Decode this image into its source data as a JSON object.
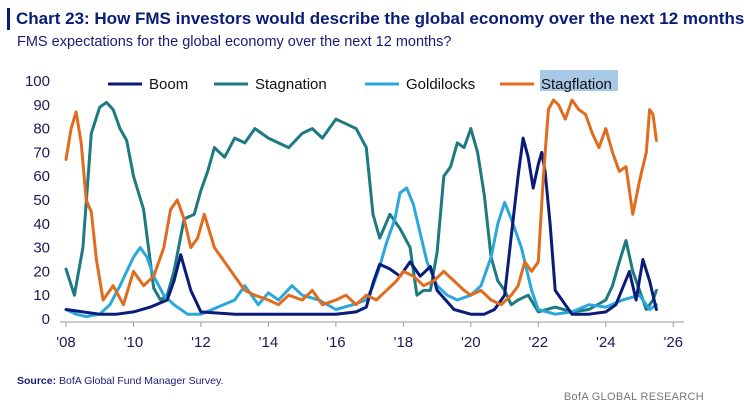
{
  "header": {
    "title": "Chart 23: How FMS investors would describe the global economy over the next 12 months",
    "subtitle": "FMS expectations for the global economy over the next 12 months?"
  },
  "footer": {
    "source_label": "Source:",
    "source_text": "BofA Global Fund Manager Survey.",
    "brand": "BofA GLOBAL RESEARCH"
  },
  "colors": {
    "Boom": "#0a1c7a",
    "Stagnation": "#1c7a80",
    "Goldilocks": "#2aa8dd",
    "Stagflation": "#e06c1e",
    "highlight": "#a8c8e8"
  },
  "chart_data": {
    "type": "line",
    "title": "How FMS investors would describe the global economy over the next 12 months",
    "xlabel": "",
    "ylabel": "",
    "xlim": [
      2008.0,
      2026.2
    ],
    "ylim": [
      0,
      100
    ],
    "y_ticks": [
      0,
      10,
      20,
      30,
      40,
      50,
      60,
      70,
      80,
      90,
      100
    ],
    "x_ticks": [
      2008,
      2010,
      2012,
      2014,
      2016,
      2018,
      2020,
      2022,
      2024,
      2026
    ],
    "x_tick_labels": [
      "'08",
      "'10",
      "'12",
      "'14",
      "'16",
      "'18",
      "'20",
      "'22",
      "'24",
      "'26"
    ],
    "legend_position": "top",
    "highlighted_legend": "Stagflation",
    "series": [
      {
        "name": "Boom",
        "x": [
          2008.0,
          2008.5,
          2009.0,
          2009.5,
          2010.0,
          2010.5,
          2011.0,
          2011.2,
          2011.4,
          2011.7,
          2012.0,
          2013.0,
          2014.0,
          2015.0,
          2016.0,
          2016.6,
          2016.9,
          2017.1,
          2017.3,
          2017.6,
          2017.9,
          2018.2,
          2018.5,
          2018.8,
          2019.0,
          2019.5,
          2020.0,
          2020.4,
          2020.7,
          2021.0,
          2021.2,
          2021.4,
          2021.55,
          2021.7,
          2021.85,
          2022.0,
          2022.1,
          2022.2,
          2022.35,
          2022.5,
          2023.0,
          2023.5,
          2024.0,
          2024.3,
          2024.5,
          2024.7,
          2024.9,
          2025.1,
          2025.3,
          2025.5
        ],
        "values": [
          4,
          3,
          2,
          2,
          3,
          5,
          8,
          16,
          27,
          12,
          3,
          2,
          2,
          2,
          2,
          3,
          5,
          15,
          23,
          21,
          18,
          24,
          18,
          22,
          12,
          4,
          2,
          2,
          4,
          10,
          35,
          60,
          76,
          68,
          55,
          65,
          70,
          62,
          40,
          12,
          2,
          2,
          3,
          6,
          13,
          20,
          8,
          25,
          16,
          4
        ]
      },
      {
        "name": "Stagnation",
        "x": [
          2008.0,
          2008.25,
          2008.5,
          2008.75,
          2009.0,
          2009.2,
          2009.4,
          2009.6,
          2009.8,
          2010.0,
          2010.3,
          2010.6,
          2010.8,
          2011.0,
          2011.2,
          2011.5,
          2011.8,
          2012.0,
          2012.2,
          2012.4,
          2012.7,
          2013.0,
          2013.3,
          2013.6,
          2014.0,
          2014.3,
          2014.6,
          2015.0,
          2015.3,
          2015.6,
          2016.0,
          2016.3,
          2016.6,
          2016.9,
          2017.1,
          2017.3,
          2017.6,
          2017.9,
          2018.2,
          2018.4,
          2018.6,
          2018.8,
          2019.0,
          2019.2,
          2019.4,
          2019.6,
          2019.8,
          2020.0,
          2020.2,
          2020.4,
          2020.6,
          2020.8,
          2021.0,
          2021.2,
          2021.4,
          2021.7,
          2022.0,
          2022.5,
          2023.0,
          2023.5,
          2024.0,
          2024.2,
          2024.4,
          2024.6,
          2024.8,
          2025.0,
          2025.2,
          2025.4,
          2025.5
        ],
        "values": [
          21,
          10,
          30,
          78,
          89,
          91,
          88,
          80,
          75,
          60,
          46,
          13,
          8,
          10,
          20,
          42,
          44,
          54,
          62,
          72,
          68,
          76,
          74,
          80,
          76,
          74,
          72,
          78,
          80,
          76,
          84,
          82,
          80,
          72,
          44,
          34,
          44,
          38,
          30,
          10,
          12,
          12,
          28,
          60,
          64,
          74,
          72,
          80,
          70,
          52,
          26,
          16,
          12,
          6,
          8,
          10,
          3,
          5,
          3,
          4,
          8,
          14,
          24,
          33,
          20,
          12,
          4,
          8,
          12
        ]
      },
      {
        "name": "Goldilocks",
        "x": [
          2008.0,
          2008.3,
          2008.6,
          2009.0,
          2009.3,
          2009.6,
          2010.0,
          2010.2,
          2010.4,
          2010.6,
          2010.9,
          2011.2,
          2011.6,
          2012.0,
          2012.5,
          2013.0,
          2013.3,
          2013.7,
          2014.0,
          2014.3,
          2014.7,
          2015.0,
          2015.5,
          2016.0,
          2016.5,
          2016.9,
          2017.1,
          2017.3,
          2017.5,
          2017.75,
          2017.9,
          2018.1,
          2018.3,
          2018.5,
          2018.7,
          2019.0,
          2019.3,
          2019.6,
          2020.0,
          2020.3,
          2020.6,
          2020.8,
          2021.0,
          2021.2,
          2021.5,
          2021.8,
          2022.0,
          2022.5,
          2023.0,
          2023.5,
          2024.0,
          2024.5,
          2025.0,
          2025.3,
          2025.5
        ],
        "values": [
          4,
          2,
          1,
          2,
          6,
          14,
          26,
          30,
          26,
          18,
          10,
          6,
          2,
          2,
          5,
          8,
          14,
          6,
          11,
          8,
          14,
          10,
          8,
          4,
          6,
          8,
          14,
          22,
          32,
          42,
          53,
          55,
          48,
          36,
          24,
          14,
          10,
          8,
          10,
          14,
          26,
          40,
          49,
          42,
          30,
          12,
          4,
          2,
          3,
          6,
          5,
          8,
          10,
          4,
          6
        ]
      },
      {
        "name": "Stagflation",
        "x": [
          2008.0,
          2008.15,
          2008.3,
          2008.45,
          2008.6,
          2008.75,
          2008.9,
          2009.1,
          2009.4,
          2009.7,
          2010.0,
          2010.3,
          2010.6,
          2010.9,
          2011.1,
          2011.3,
          2011.5,
          2011.7,
          2011.9,
          2012.1,
          2012.4,
          2012.7,
          2013.0,
          2013.3,
          2013.6,
          2014.0,
          2014.3,
          2014.6,
          2015.0,
          2015.3,
          2015.6,
          2016.0,
          2016.3,
          2016.6,
          2016.9,
          2017.2,
          2017.5,
          2017.8,
          2018.0,
          2018.3,
          2018.6,
          2018.9,
          2019.2,
          2019.5,
          2019.8,
          2020.0,
          2020.3,
          2020.6,
          2020.9,
          2021.2,
          2021.4,
          2021.6,
          2021.8,
          2022.0,
          2022.15,
          2022.3,
          2022.45,
          2022.6,
          2022.8,
          2023.0,
          2023.2,
          2023.4,
          2023.6,
          2023.8,
          2024.0,
          2024.2,
          2024.4,
          2024.6,
          2024.8,
          2025.0,
          2025.2,
          2025.3,
          2025.4,
          2025.5
        ],
        "values": [
          67,
          80,
          87,
          74,
          50,
          45,
          25,
          8,
          14,
          6,
          20,
          14,
          18,
          30,
          46,
          50,
          42,
          30,
          34,
          44,
          30,
          24,
          18,
          12,
          10,
          8,
          6,
          10,
          8,
          12,
          6,
          8,
          10,
          6,
          10,
          8,
          12,
          16,
          20,
          18,
          14,
          16,
          20,
          16,
          12,
          10,
          12,
          8,
          6,
          10,
          14,
          24,
          20,
          24,
          60,
          88,
          92,
          90,
          84,
          92,
          88,
          86,
          78,
          72,
          80,
          70,
          62,
          64,
          44,
          58,
          70,
          88,
          86,
          75
        ]
      }
    ]
  }
}
